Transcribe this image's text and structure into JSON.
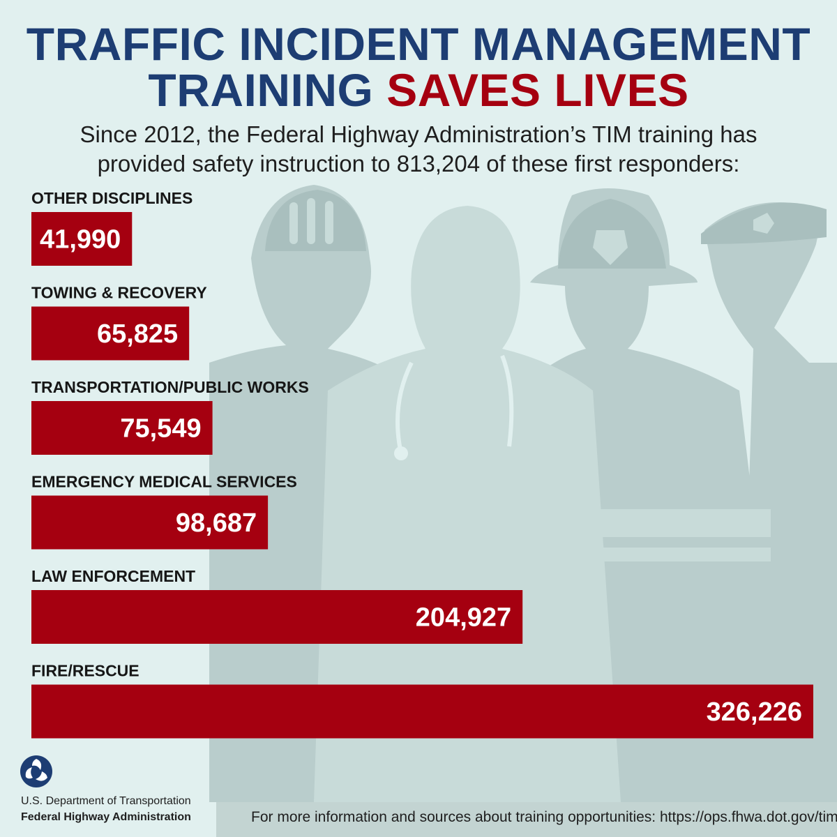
{
  "header": {
    "title_line1": "TRAFFIC INCIDENT MANAGEMENT",
    "title_line2_prefix": "TRAINING ",
    "title_line2_accent": "SAVES LIVES",
    "subtitle_line1": "Since 2012, the Federal Highway Administration’s TIM training has",
    "subtitle_line2": "provided safety instruction to 813,204 of these first responders:"
  },
  "colors": {
    "title_blue": "#1d3d73",
    "accent_red": "#a50010",
    "background": "#e1f0ef",
    "silhouette": "#b8cccb"
  },
  "chart_data": {
    "type": "bar",
    "orientation": "horizontal",
    "categories": [
      "OTHER DISCIPLINES",
      "TOWING & RECOVERY",
      "TRANSPORTATION/PUBLIC WORKS",
      "EMERGENCY MEDICAL SERVICES",
      "LAW ENFORCEMENT",
      "FIRE/RESCUE"
    ],
    "values": [
      41990,
      65825,
      75549,
      98687,
      204927,
      326226
    ],
    "value_labels": [
      "41,990",
      "65,825",
      "75,549",
      "98,687",
      "204,927",
      "326,226"
    ],
    "xlim": [
      0,
      326226
    ],
    "grid": false,
    "legend": "none"
  },
  "footer": {
    "info_text": "For more information and sources about training opportunities: https://ops.fhwa.dot.gov/tim",
    "dept": "U.S. Department of Transportation",
    "admin": "Federal Highway Administration",
    "logo_icon": "dot-triskelion-logo-icon"
  }
}
